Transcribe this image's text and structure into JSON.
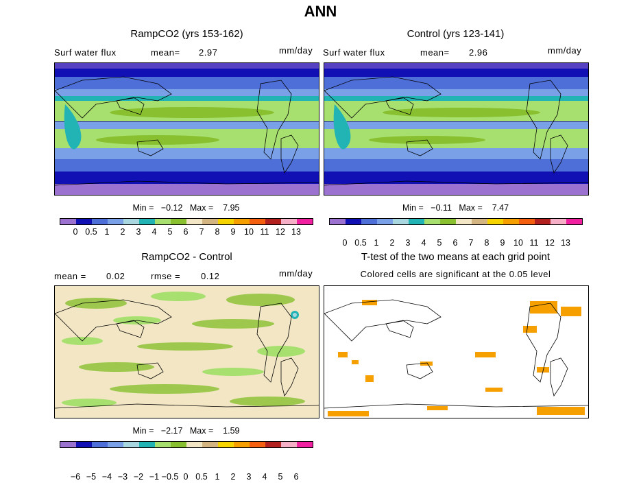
{
  "figure": {
    "title": "ANN"
  },
  "panels": {
    "ramp": {
      "title": "RampCO2 (yrs 153-162)",
      "variable": "Surf water flux",
      "mean_label": "mean=",
      "mean_value": "2.97",
      "units": "mm/day",
      "min_label": "Min =",
      "min_value": "−0.12",
      "max_label": "Max =",
      "max_value": "7.95"
    },
    "control": {
      "title": "Control (yrs 123-141)",
      "variable": "Surf water flux",
      "mean_label": "mean=",
      "mean_value": "2.96",
      "units": "mm/day",
      "min_label": "Min =",
      "min_value": "−0.11",
      "max_label": "Max =",
      "max_value": "7.47"
    },
    "diff": {
      "title": "RampCO2 - Control",
      "mean_label": "mean =",
      "mean_value": "0.02",
      "rmse_label": "rmse =",
      "rmse_value": "0.12",
      "units": "mm/day",
      "min_label": "Min =",
      "min_value": "−2.17",
      "max_label": "Max =",
      "max_value": "1.59"
    },
    "ttest": {
      "title": "T-test of the two means at each grid point",
      "subtitle": "Colored cells are significant at the 0.05 level"
    }
  },
  "colorbars": {
    "abs": {
      "colors": [
        "#9b72cf",
        "#1010b4",
        "#4f6fd8",
        "#7aa0e8",
        "#a8d7e0",
        "#22b4b4",
        "#a8e070",
        "#88c030",
        "#f2e6c4",
        "#d4b480",
        "#f5d400",
        "#f5a000",
        "#f56010",
        "#b22020",
        "#f5b0c8",
        "#f020a0"
      ],
      "labels": [
        "0",
        "0.5",
        "1",
        "2",
        "3",
        "4",
        "5",
        "6",
        "7",
        "8",
        "9",
        "10",
        "11",
        "12",
        "13"
      ]
    },
    "diff": {
      "colors": [
        "#9b72cf",
        "#1010b4",
        "#4f6fd8",
        "#7aa0e8",
        "#a8d7e0",
        "#22b4b4",
        "#a8e070",
        "#88c030",
        "#f2e6c4",
        "#d4b480",
        "#f5d400",
        "#f5a000",
        "#f56010",
        "#b22020",
        "#f5b0c8",
        "#f020a0"
      ],
      "labels": [
        "−6",
        "−5",
        "−4",
        "−3",
        "−2",
        "−1",
        "−0.5",
        "0",
        "0.5",
        "1",
        "2",
        "3",
        "4",
        "5",
        "6"
      ]
    }
  }
}
